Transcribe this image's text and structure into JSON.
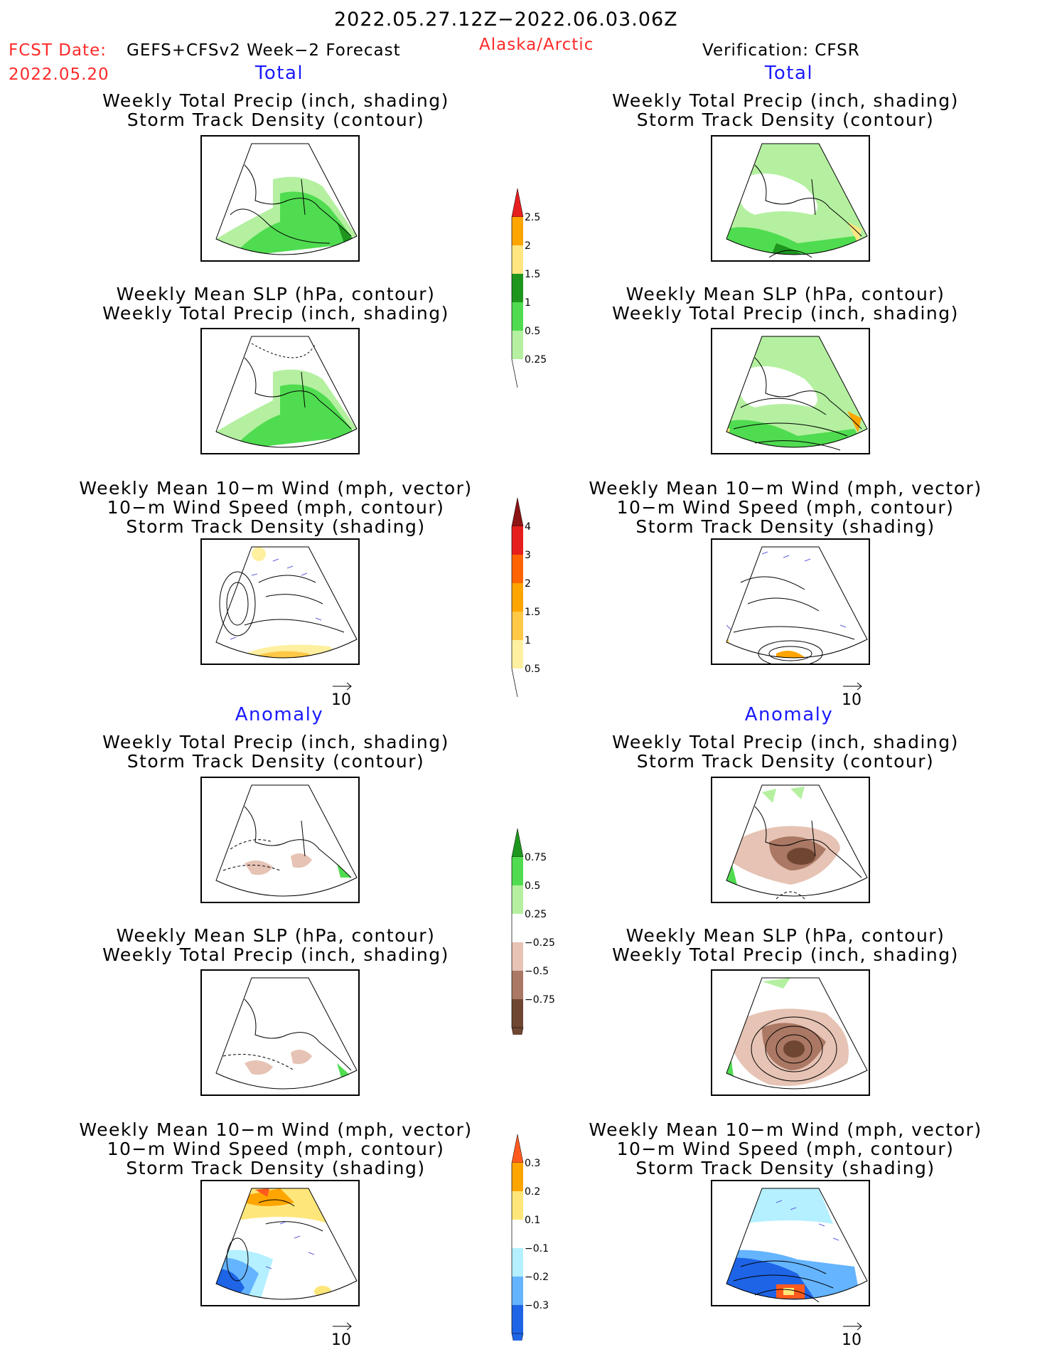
{
  "header": {
    "date_range": "2022.05.27.12Z−2022.06.03.06Z",
    "fcst_label": "FCST Date:",
    "model": "GEFS+CFSv2 Week−2 Forecast",
    "fcst_date": "2022.05.20",
    "region": "Alaska/Arctic",
    "verification": "Verification: CFSR"
  },
  "sections": {
    "total": "Total",
    "anomaly": "Anomaly"
  },
  "titles": {
    "precip_track": [
      "Weekly Total Precip (inch, shading)",
      "Storm Track Density (contour)"
    ],
    "slp_precip": [
      "Weekly Mean SLP (hPa, contour)",
      "Weekly Total Precip (inch, shading)"
    ],
    "wind_track": [
      "Weekly Mean 10−m Wind (mph, vector)",
      "10−m Wind Speed (mph, contour)",
      "Storm Track Density (shading)"
    ]
  },
  "vector_ref": "10",
  "colorbars": {
    "precip_total": {
      "labels": [
        "2.5",
        "2",
        "1.5",
        "1",
        "0.5",
        "0.25"
      ],
      "colors": [
        "#e61e1e",
        "#ffa500",
        "#ffe680",
        "#1e961e",
        "#50dc50",
        "#b4f0a0"
      ]
    },
    "track_total": {
      "labels": [
        "4",
        "3",
        "2",
        "1.5",
        "1",
        "0.5"
      ],
      "colors": [
        "#8c1414",
        "#e61e1e",
        "#ff6400",
        "#ffa500",
        "#ffc846",
        "#fff0a0"
      ]
    },
    "precip_anom": {
      "labels": [
        "0.75",
        "0.5",
        "0.25",
        "−0.25",
        "−0.5",
        "−0.75"
      ],
      "colors": [
        "#1e961e",
        "#50dc50",
        "#b4f0a0",
        "#ffffff",
        "#e6c3b4",
        "#aa7864",
        "#6e4632"
      ]
    },
    "track_anom": {
      "labels": [
        "0.3",
        "0.2",
        "0.1",
        "−0.1",
        "−0.2",
        "−0.3"
      ],
      "colors": [
        "#ff5a1e",
        "#ffa500",
        "#ffe67a",
        "#ffffff",
        "#b4f0ff",
        "#64b4ff",
        "#1e64e6"
      ]
    }
  }
}
